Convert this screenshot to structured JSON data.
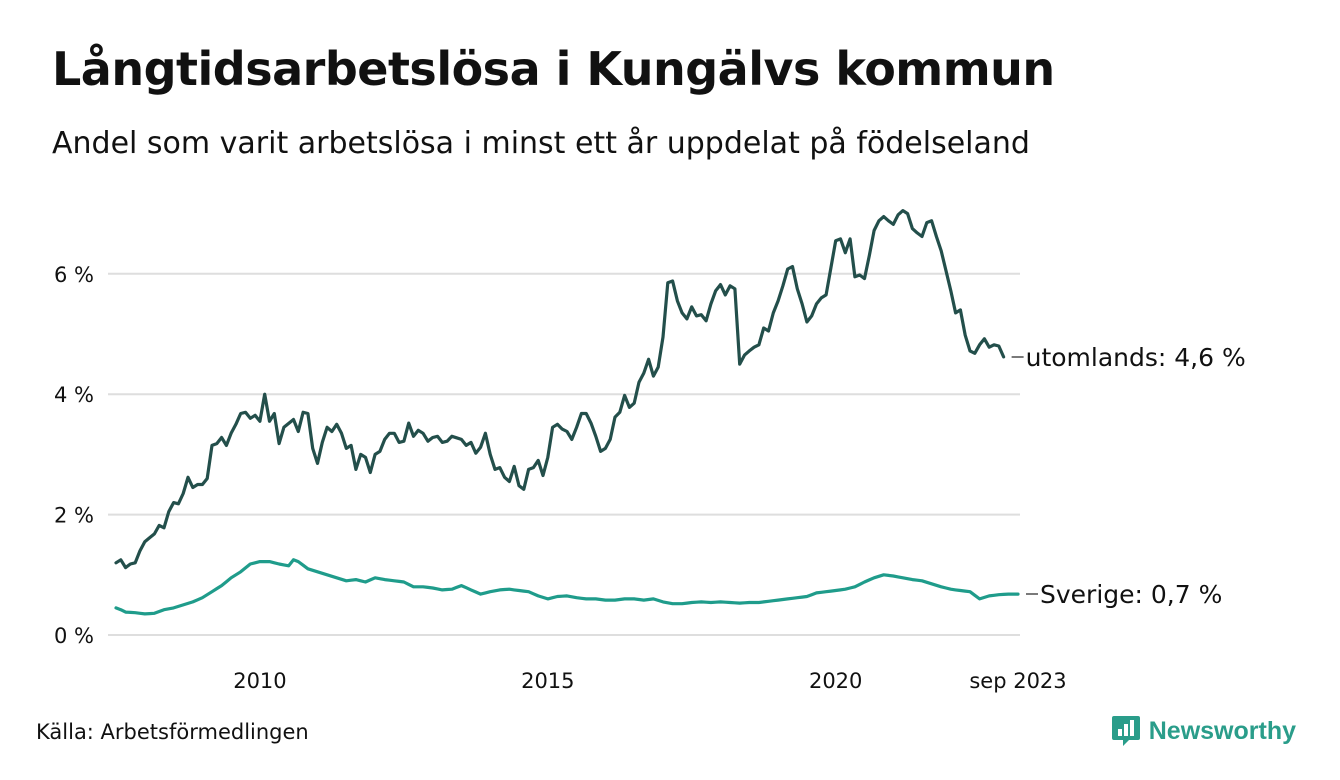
{
  "header": {
    "title": "Långtidsarbetslösa i Kungälvs kommun",
    "subtitle": "Andel som varit arbetslösa i minst ett år uppdelat på födelseland"
  },
  "footer": {
    "source": "Källa: Arbetsförmedlingen",
    "brand": "Newsworthy"
  },
  "colors": {
    "utomlands": "#234f4b",
    "sverige": "#1f9c8b",
    "grid": "#dedede"
  },
  "chart_data": {
    "type": "line",
    "title": "Långtidsarbetslösa i Kungälvs kommun",
    "subtitle": "Andel som varit arbetslösa i minst ett år uppdelat på födelseland",
    "xlabel": "",
    "ylabel": "",
    "x_unit": "month",
    "x_start": "2008-01",
    "x_end": "2023-09",
    "ylim": [
      0,
      7.2
    ],
    "grid": true,
    "y_ticks": [
      {
        "value": 0,
        "label": "0 %"
      },
      {
        "value": 2,
        "label": "2 %"
      },
      {
        "value": 4,
        "label": "4 %"
      },
      {
        "value": 6,
        "label": "6 %"
      }
    ],
    "x_ticks": [
      {
        "month_index": 30,
        "label": "2010"
      },
      {
        "month_index": 90,
        "label": "2015"
      },
      {
        "month_index": 150,
        "label": "2020"
      },
      {
        "month_index": 188,
        "label": "sep 2023"
      }
    ],
    "series": [
      {
        "key": "utomlands",
        "name": "utomlands",
        "end_label": "utomlands: 4,6 %",
        "anchors": [
          [
            0,
            1.2
          ],
          [
            1,
            1.25
          ],
          [
            2,
            1.12
          ],
          [
            3,
            1.18
          ],
          [
            4,
            1.2
          ],
          [
            5,
            1.4
          ],
          [
            6,
            1.55
          ],
          [
            8,
            1.68
          ],
          [
            9,
            1.82
          ],
          [
            10,
            1.78
          ],
          [
            11,
            2.05
          ],
          [
            12,
            2.2
          ],
          [
            13,
            2.18
          ],
          [
            14,
            2.35
          ],
          [
            15,
            2.62
          ],
          [
            16,
            2.45
          ],
          [
            17,
            2.5
          ],
          [
            18,
            2.5
          ],
          [
            19,
            2.6
          ],
          [
            20,
            3.15
          ],
          [
            21,
            3.18
          ],
          [
            22,
            3.28
          ],
          [
            23,
            3.15
          ],
          [
            24,
            3.35
          ],
          [
            25,
            3.5
          ],
          [
            26,
            3.68
          ],
          [
            27,
            3.7
          ],
          [
            28,
            3.6
          ],
          [
            29,
            3.65
          ],
          [
            30,
            3.55
          ],
          [
            31,
            4.0
          ],
          [
            32,
            3.55
          ],
          [
            33,
            3.68
          ],
          [
            34,
            3.18
          ],
          [
            35,
            3.45
          ],
          [
            37,
            3.58
          ],
          [
            38,
            3.38
          ],
          [
            39,
            3.7
          ],
          [
            40,
            3.68
          ],
          [
            41,
            3.1
          ],
          [
            42,
            2.85
          ],
          [
            43,
            3.2
          ],
          [
            44,
            3.45
          ],
          [
            45,
            3.38
          ],
          [
            46,
            3.5
          ],
          [
            47,
            3.35
          ],
          [
            48,
            3.1
          ],
          [
            49,
            3.15
          ],
          [
            50,
            2.75
          ],
          [
            51,
            3.0
          ],
          [
            52,
            2.95
          ],
          [
            53,
            2.7
          ],
          [
            54,
            3.0
          ],
          [
            55,
            3.05
          ],
          [
            56,
            3.25
          ],
          [
            57,
            3.35
          ],
          [
            58,
            3.35
          ],
          [
            59,
            3.2
          ],
          [
            60,
            3.22
          ],
          [
            61,
            3.52
          ],
          [
            62,
            3.3
          ],
          [
            63,
            3.4
          ],
          [
            64,
            3.35
          ],
          [
            65,
            3.22
          ],
          [
            66,
            3.28
          ],
          [
            67,
            3.3
          ],
          [
            68,
            3.2
          ],
          [
            69,
            3.22
          ],
          [
            70,
            3.3
          ],
          [
            72,
            3.25
          ],
          [
            73,
            3.15
          ],
          [
            74,
            3.2
          ],
          [
            75,
            3.02
          ],
          [
            76,
            3.12
          ],
          [
            77,
            3.35
          ],
          [
            78,
            3.0
          ],
          [
            79,
            2.75
          ],
          [
            80,
            2.78
          ],
          [
            81,
            2.62
          ],
          [
            82,
            2.55
          ],
          [
            83,
            2.8
          ],
          [
            84,
            2.48
          ],
          [
            85,
            2.42
          ],
          [
            86,
            2.75
          ],
          [
            87,
            2.78
          ],
          [
            88,
            2.9
          ],
          [
            89,
            2.65
          ],
          [
            90,
            2.95
          ],
          [
            91,
            3.45
          ],
          [
            92,
            3.5
          ],
          [
            93,
            3.42
          ],
          [
            94,
            3.38
          ],
          [
            95,
            3.25
          ],
          [
            96,
            3.45
          ],
          [
            97,
            3.68
          ],
          [
            98,
            3.68
          ],
          [
            99,
            3.52
          ],
          [
            100,
            3.3
          ],
          [
            101,
            3.05
          ],
          [
            102,
            3.1
          ],
          [
            103,
            3.25
          ],
          [
            104,
            3.62
          ],
          [
            105,
            3.7
          ],
          [
            106,
            3.98
          ],
          [
            107,
            3.78
          ],
          [
            108,
            3.85
          ],
          [
            109,
            4.2
          ],
          [
            110,
            4.35
          ],
          [
            111,
            4.58
          ],
          [
            112,
            4.3
          ],
          [
            113,
            4.45
          ],
          [
            114,
            4.95
          ],
          [
            115,
            5.85
          ],
          [
            116,
            5.88
          ],
          [
            117,
            5.55
          ],
          [
            118,
            5.35
          ],
          [
            119,
            5.25
          ],
          [
            120,
            5.45
          ],
          [
            121,
            5.3
          ],
          [
            122,
            5.32
          ],
          [
            123,
            5.22
          ],
          [
            124,
            5.5
          ],
          [
            125,
            5.72
          ],
          [
            126,
            5.82
          ],
          [
            127,
            5.65
          ],
          [
            128,
            5.8
          ],
          [
            129,
            5.75
          ],
          [
            130,
            4.5
          ],
          [
            131,
            4.65
          ],
          [
            132,
            4.72
          ],
          [
            133,
            4.78
          ],
          [
            134,
            4.82
          ],
          [
            135,
            5.1
          ],
          [
            136,
            5.05
          ],
          [
            137,
            5.35
          ],
          [
            138,
            5.55
          ],
          [
            139,
            5.8
          ],
          [
            140,
            6.08
          ],
          [
            141,
            6.12
          ],
          [
            142,
            5.75
          ],
          [
            143,
            5.5
          ],
          [
            144,
            5.2
          ],
          [
            145,
            5.3
          ],
          [
            146,
            5.5
          ],
          [
            147,
            5.6
          ],
          [
            148,
            5.65
          ],
          [
            149,
            6.1
          ],
          [
            150,
            6.55
          ],
          [
            151,
            6.58
          ],
          [
            152,
            6.35
          ],
          [
            153,
            6.58
          ],
          [
            154,
            5.95
          ],
          [
            155,
            5.98
          ],
          [
            156,
            5.92
          ],
          [
            157,
            6.3
          ],
          [
            158,
            6.72
          ],
          [
            159,
            6.88
          ],
          [
            160,
            6.95
          ],
          [
            161,
            6.88
          ],
          [
            162,
            6.82
          ],
          [
            163,
            6.98
          ],
          [
            164,
            7.05
          ],
          [
            165,
            7.0
          ],
          [
            166,
            6.75
          ],
          [
            167,
            6.68
          ],
          [
            168,
            6.62
          ],
          [
            169,
            6.85
          ],
          [
            170,
            6.88
          ],
          [
            171,
            6.62
          ],
          [
            172,
            6.38
          ],
          [
            173,
            6.05
          ],
          [
            174,
            5.72
          ],
          [
            175,
            5.35
          ],
          [
            176,
            5.4
          ],
          [
            177,
            4.98
          ],
          [
            178,
            4.72
          ],
          [
            179,
            4.68
          ],
          [
            180,
            4.82
          ],
          [
            181,
            4.92
          ],
          [
            182,
            4.78
          ],
          [
            183,
            4.82
          ],
          [
            184,
            4.8
          ],
          [
            185,
            4.62
          ]
        ]
      },
      {
        "key": "sverige",
        "name": "Sverige",
        "end_label": "Sverige: 0,7 %",
        "anchors": [
          [
            0,
            0.45
          ],
          [
            1,
            0.42
          ],
          [
            2,
            0.38
          ],
          [
            4,
            0.37
          ],
          [
            6,
            0.35
          ],
          [
            8,
            0.36
          ],
          [
            10,
            0.42
          ],
          [
            12,
            0.45
          ],
          [
            14,
            0.5
          ],
          [
            16,
            0.55
          ],
          [
            18,
            0.62
          ],
          [
            20,
            0.72
          ],
          [
            22,
            0.82
          ],
          [
            24,
            0.95
          ],
          [
            26,
            1.05
          ],
          [
            28,
            1.18
          ],
          [
            30,
            1.22
          ],
          [
            32,
            1.22
          ],
          [
            34,
            1.18
          ],
          [
            36,
            1.15
          ],
          [
            37,
            1.25
          ],
          [
            38,
            1.22
          ],
          [
            40,
            1.1
          ],
          [
            42,
            1.05
          ],
          [
            44,
            1.0
          ],
          [
            46,
            0.95
          ],
          [
            48,
            0.9
          ],
          [
            50,
            0.92
          ],
          [
            52,
            0.88
          ],
          [
            54,
            0.95
          ],
          [
            56,
            0.92
          ],
          [
            58,
            0.9
          ],
          [
            60,
            0.88
          ],
          [
            62,
            0.8
          ],
          [
            64,
            0.8
          ],
          [
            66,
            0.78
          ],
          [
            68,
            0.75
          ],
          [
            70,
            0.76
          ],
          [
            72,
            0.82
          ],
          [
            74,
            0.75
          ],
          [
            76,
            0.68
          ],
          [
            78,
            0.72
          ],
          [
            80,
            0.75
          ],
          [
            82,
            0.76
          ],
          [
            84,
            0.74
          ],
          [
            86,
            0.72
          ],
          [
            88,
            0.65
          ],
          [
            90,
            0.6
          ],
          [
            92,
            0.64
          ],
          [
            94,
            0.65
          ],
          [
            96,
            0.62
          ],
          [
            98,
            0.6
          ],
          [
            100,
            0.6
          ],
          [
            102,
            0.58
          ],
          [
            104,
            0.58
          ],
          [
            106,
            0.6
          ],
          [
            108,
            0.6
          ],
          [
            110,
            0.58
          ],
          [
            112,
            0.6
          ],
          [
            114,
            0.55
          ],
          [
            116,
            0.52
          ],
          [
            118,
            0.52
          ],
          [
            120,
            0.54
          ],
          [
            122,
            0.55
          ],
          [
            124,
            0.54
          ],
          [
            126,
            0.55
          ],
          [
            128,
            0.54
          ],
          [
            130,
            0.53
          ],
          [
            132,
            0.54
          ],
          [
            134,
            0.54
          ],
          [
            136,
            0.56
          ],
          [
            138,
            0.58
          ],
          [
            140,
            0.6
          ],
          [
            142,
            0.62
          ],
          [
            144,
            0.64
          ],
          [
            146,
            0.7
          ],
          [
            148,
            0.72
          ],
          [
            150,
            0.74
          ],
          [
            152,
            0.76
          ],
          [
            154,
            0.8
          ],
          [
            156,
            0.88
          ],
          [
            158,
            0.95
          ],
          [
            160,
            1.0
          ],
          [
            162,
            0.98
          ],
          [
            164,
            0.95
          ],
          [
            166,
            0.92
          ],
          [
            168,
            0.9
          ],
          [
            170,
            0.85
          ],
          [
            172,
            0.8
          ],
          [
            174,
            0.76
          ],
          [
            176,
            0.74
          ],
          [
            178,
            0.72
          ],
          [
            180,
            0.6
          ],
          [
            182,
            0.65
          ],
          [
            184,
            0.67
          ],
          [
            186,
            0.68
          ],
          [
            188,
            0.68
          ]
        ]
      }
    ]
  }
}
